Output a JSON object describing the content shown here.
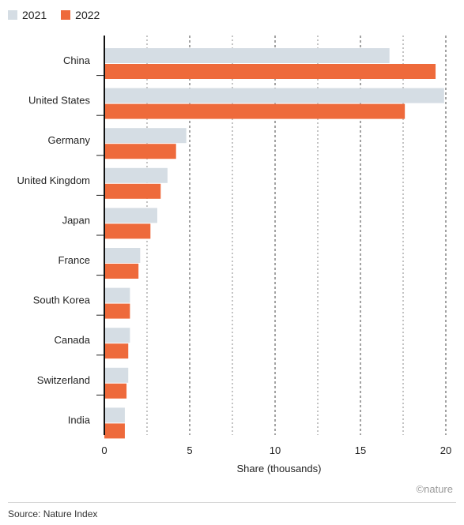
{
  "chart_data": {
    "type": "bar",
    "orientation": "horizontal",
    "categories": [
      "China",
      "United States",
      "Germany",
      "United Kingdom",
      "Japan",
      "France",
      "South Korea",
      "Canada",
      "Switzerland",
      "India"
    ],
    "series": [
      {
        "name": "2021",
        "color": "#d5dde4",
        "values": [
          16.7,
          19.9,
          4.8,
          3.7,
          3.1,
          2.1,
          1.5,
          1.5,
          1.4,
          1.2
        ]
      },
      {
        "name": "2022",
        "color": "#ee6a3b",
        "values": [
          19.4,
          17.6,
          4.2,
          3.3,
          2.7,
          2.0,
          1.5,
          1.4,
          1.3,
          1.2
        ]
      }
    ],
    "xlabel": "Share (thousands)",
    "xticks": [
      "0",
      "5",
      "10",
      "15",
      "20"
    ],
    "xlim": [
      0,
      20
    ],
    "grid": "vertical dashed",
    "legend": "top-left"
  },
  "footer": {
    "source": "Source: Nature Index",
    "logo_text": "©nature"
  }
}
